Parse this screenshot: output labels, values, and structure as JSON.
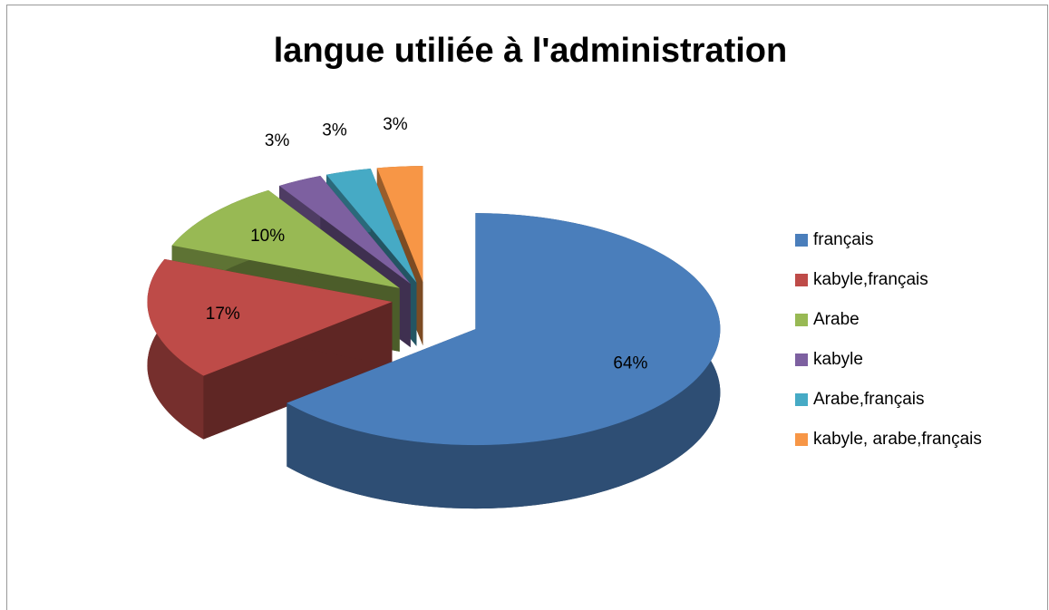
{
  "chart_data": {
    "type": "pie",
    "title": "langue utiliée à l'administration",
    "categories": [
      "français",
      "kabyle,français",
      "Arabe",
      "kabyle",
      "Arabe,français",
      "kabyle, arabe,français"
    ],
    "values": [
      64,
      17,
      10,
      3,
      3,
      3
    ],
    "value_labels": [
      "64%",
      "17%",
      "10%",
      "3%",
      "3%",
      "3%"
    ],
    "colors": [
      "#4a7ebb",
      "#be4b48",
      "#98b954",
      "#7d60a0",
      "#46aac5",
      "#f79646"
    ],
    "legend": "right"
  }
}
